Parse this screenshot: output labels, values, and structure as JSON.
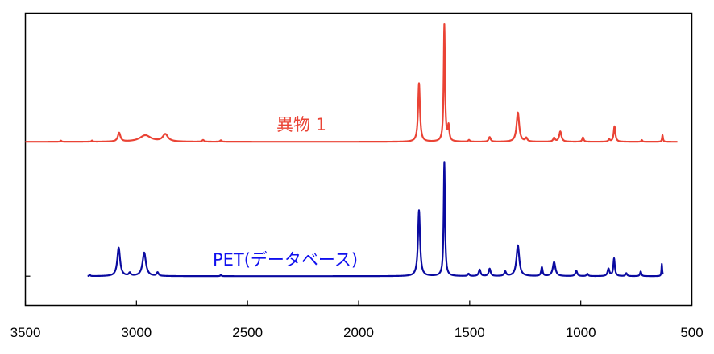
{
  "chart_data": {
    "type": "line",
    "title": "",
    "xlabel": "",
    "ylabel": "",
    "x_axis": {
      "min": 3500,
      "max": 500,
      "reversed": true,
      "ticks": [
        3500,
        3000,
        2500,
        2000,
        1500,
        1000,
        500
      ],
      "tick_labels": [
        "3500",
        "3000",
        "2500",
        "2000",
        "1500",
        "1000",
        "500"
      ]
    },
    "y_axis": {
      "min": 0,
      "max": 1,
      "ticks_shown": false,
      "tick_marks": [
        0.1,
        0.56
      ]
    },
    "grid": false,
    "legend": "none",
    "baseline_ranges": {
      "red": [
        565,
        3500
      ],
      "blue": [
        630,
        3220
      ]
    },
    "series": [
      {
        "name": "異物 1",
        "color": "#ea4335",
        "baseline": 0.56,
        "peaks": [
          {
            "x": 3340,
            "h": 0.004,
            "w": 6
          },
          {
            "x": 3200,
            "h": 0.004,
            "w": 6
          },
          {
            "x": 3078,
            "h": 0.03,
            "w": 14
          },
          {
            "x": 2960,
            "h": 0.022,
            "w": 60
          },
          {
            "x": 2870,
            "h": 0.025,
            "w": 28
          },
          {
            "x": 2700,
            "h": 0.006,
            "w": 10
          },
          {
            "x": 2620,
            "h": 0.005,
            "w": 8
          },
          {
            "x": 1728,
            "h": 0.2,
            "w": 10
          },
          {
            "x": 1614,
            "h": 0.4,
            "w": 7
          },
          {
            "x": 1595,
            "h": 0.05,
            "w": 8
          },
          {
            "x": 1503,
            "h": 0.006,
            "w": 8
          },
          {
            "x": 1410,
            "h": 0.016,
            "w": 10
          },
          {
            "x": 1283,
            "h": 0.1,
            "w": 14
          },
          {
            "x": 1245,
            "h": 0.012,
            "w": 10
          },
          {
            "x": 1120,
            "h": 0.013,
            "w": 10
          },
          {
            "x": 1092,
            "h": 0.035,
            "w": 12
          },
          {
            "x": 990,
            "h": 0.015,
            "w": 8
          },
          {
            "x": 872,
            "h": 0.008,
            "w": 8
          },
          {
            "x": 848,
            "h": 0.053,
            "w": 9
          },
          {
            "x": 725,
            "h": 0.006,
            "w": 6
          },
          {
            "x": 632,
            "h": 0.023,
            "w": 5
          }
        ]
      },
      {
        "name": "PET(データベース)",
        "color": "#0a0aa0",
        "baseline": 0.1,
        "peaks": [
          {
            "x": 3210,
            "h": 0.004,
            "w": 6
          },
          {
            "x": 3080,
            "h": 0.097,
            "w": 15
          },
          {
            "x": 3030,
            "h": 0.01,
            "w": 10
          },
          {
            "x": 2965,
            "h": 0.08,
            "w": 18
          },
          {
            "x": 2905,
            "h": 0.012,
            "w": 10
          },
          {
            "x": 2620,
            "h": 0.004,
            "w": 6
          },
          {
            "x": 1728,
            "h": 0.225,
            "w": 11
          },
          {
            "x": 1614,
            "h": 0.39,
            "w": 7
          },
          {
            "x": 1505,
            "h": 0.008,
            "w": 8
          },
          {
            "x": 1455,
            "h": 0.022,
            "w": 10
          },
          {
            "x": 1410,
            "h": 0.025,
            "w": 10
          },
          {
            "x": 1340,
            "h": 0.015,
            "w": 10
          },
          {
            "x": 1283,
            "h": 0.105,
            "w": 15
          },
          {
            "x": 1175,
            "h": 0.03,
            "w": 8
          },
          {
            "x": 1120,
            "h": 0.048,
            "w": 14
          },
          {
            "x": 1020,
            "h": 0.018,
            "w": 10
          },
          {
            "x": 970,
            "h": 0.008,
            "w": 8
          },
          {
            "x": 875,
            "h": 0.025,
            "w": 10
          },
          {
            "x": 850,
            "h": 0.06,
            "w": 8
          },
          {
            "x": 795,
            "h": 0.01,
            "w": 8
          },
          {
            "x": 730,
            "h": 0.016,
            "w": 7
          },
          {
            "x": 635,
            "h": 0.042,
            "w": 4
          }
        ]
      }
    ]
  }
}
